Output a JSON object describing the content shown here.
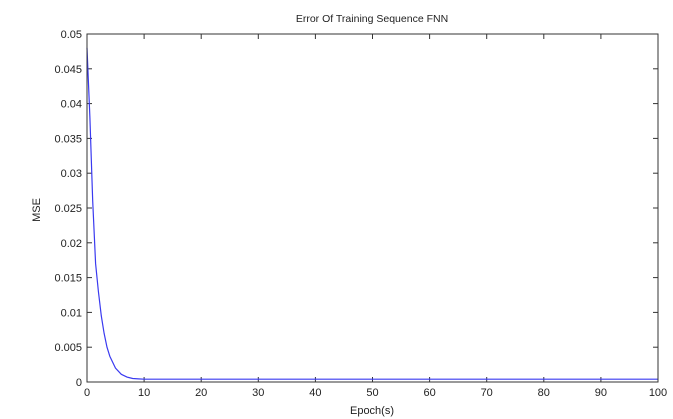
{
  "chart_data": {
    "type": "line",
    "title": "Error Of Training Sequence FNN",
    "xlabel": "Epoch(s)",
    "ylabel": "MSE",
    "xlim": [
      0,
      100
    ],
    "ylim": [
      0,
      0.05
    ],
    "xticks": [
      0,
      10,
      20,
      30,
      40,
      50,
      60,
      70,
      80,
      90,
      100
    ],
    "yticks": [
      0,
      0.005,
      0.01,
      0.015,
      0.02,
      0.025,
      0.03,
      0.035,
      0.04,
      0.045,
      0.05
    ],
    "grid": false,
    "legend": "none",
    "series": [
      {
        "color": "#3a3af0",
        "x": [
          0,
          0.5,
          1,
          1.5,
          2,
          2.5,
          3,
          3.5,
          4,
          5,
          6,
          7,
          8,
          9,
          10,
          12,
          15,
          20,
          30,
          40,
          50,
          60,
          70,
          80,
          90,
          100
        ],
        "y": [
          0.048,
          0.038,
          0.026,
          0.017,
          0.013,
          0.0095,
          0.007,
          0.005,
          0.0037,
          0.002,
          0.0011,
          0.0007,
          0.0005,
          0.00045,
          0.0004,
          0.0004,
          0.0004,
          0.0004,
          0.0004,
          0.0004,
          0.0004,
          0.0004,
          0.0004,
          0.0004,
          0.0004,
          0.0004
        ]
      }
    ]
  }
}
